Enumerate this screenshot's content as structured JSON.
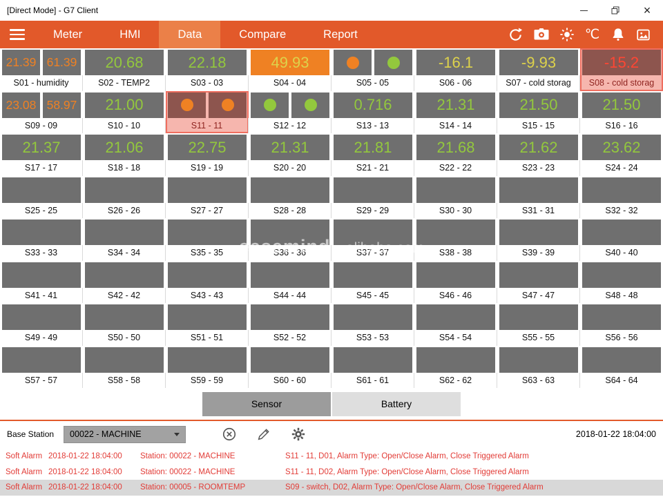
{
  "colors": {
    "accent": "#e2592a",
    "accent_active_tab": "#eb8048",
    "green": "#93c83d",
    "orange": "#ef8123",
    "yellow": "#ddd24b",
    "red": "#ff4633",
    "box_gray": "#6f6f6f",
    "alarm_highlight": "#f6b6ae",
    "alarm_text": "#e23b36"
  },
  "window": {
    "title": "[Direct Mode] - G7 Client"
  },
  "nav": {
    "tabs": [
      {
        "label": "Meter",
        "active": false
      },
      {
        "label": "HMI",
        "active": false
      },
      {
        "label": "Data",
        "active": true
      },
      {
        "label": "Compare",
        "active": false
      },
      {
        "label": "Report",
        "active": false
      }
    ],
    "temperature_unit": "℃"
  },
  "icons": {
    "menu": "hamburger-bars",
    "sync": "circular-arrow",
    "camera": "camera",
    "brightness": "sun",
    "alarm": "bell",
    "gallery": "picture-frame",
    "cancel": "circle-x",
    "edit": "pencil",
    "settings": "gear",
    "dropdown": "chevron-down"
  },
  "watermark": {
    "brand": "easemind",
    "site": "alibaba.com"
  },
  "sensors": [
    {
      "id": "S01",
      "label": "S01 - humidity",
      "type": "dual",
      "values": [
        "21.39",
        "61.39"
      ],
      "color": "orange"
    },
    {
      "id": "S02",
      "label": "S02 - TEMP2",
      "type": "value",
      "value": "20.68",
      "color": "green"
    },
    {
      "id": "S03",
      "label": "S03 - 03",
      "type": "value",
      "value": "22.18",
      "color": "green"
    },
    {
      "id": "S04",
      "label": "S04 - 04",
      "type": "value",
      "value": "49.93",
      "color": "yellow",
      "bg": "orange"
    },
    {
      "id": "S05",
      "label": "S05 - 05",
      "type": "circles",
      "circles": [
        "orange",
        "green"
      ]
    },
    {
      "id": "S06",
      "label": "S06 - 06",
      "type": "value",
      "value": "-16.1",
      "color": "yellow"
    },
    {
      "id": "S07",
      "label": "S07 - cold storag",
      "type": "value",
      "value": "-9.93",
      "color": "yellow"
    },
    {
      "id": "S08",
      "label": "S08 - cold storag",
      "type": "value",
      "value": "-15.2",
      "color": "red",
      "alarm": true
    },
    {
      "id": "S09",
      "label": "S09 - 09",
      "type": "dual",
      "values": [
        "23.08",
        "58.97"
      ],
      "color": "orange"
    },
    {
      "id": "S10",
      "label": "S10 - 10",
      "type": "value",
      "value": "21.00",
      "color": "green"
    },
    {
      "id": "S11",
      "label": "S11 - 11",
      "type": "circles",
      "circles": [
        "orange",
        "orange"
      ],
      "alarm": true
    },
    {
      "id": "S12",
      "label": "S12 - 12",
      "type": "circles",
      "circles": [
        "green",
        "green"
      ]
    },
    {
      "id": "S13",
      "label": "S13 - 13",
      "type": "value",
      "value": "0.716",
      "color": "green"
    },
    {
      "id": "S14",
      "label": "S14 - 14",
      "type": "value",
      "value": "21.31",
      "color": "green"
    },
    {
      "id": "S15",
      "label": "S15 - 15",
      "type": "value",
      "value": "21.50",
      "color": "green"
    },
    {
      "id": "S16",
      "label": "S16 - 16",
      "type": "value",
      "value": "21.50",
      "color": "green"
    },
    {
      "id": "S17",
      "label": "S17 - 17",
      "type": "value",
      "value": "21.37",
      "color": "green"
    },
    {
      "id": "S18",
      "label": "S18 - 18",
      "type": "value",
      "value": "21.06",
      "color": "green"
    },
    {
      "id": "S19",
      "label": "S19 - 19",
      "type": "value",
      "value": "22.75",
      "color": "green"
    },
    {
      "id": "S20",
      "label": "S20 - 20",
      "type": "value",
      "value": "21.31",
      "color": "green"
    },
    {
      "id": "S21",
      "label": "S21 - 21",
      "type": "value",
      "value": "21.81",
      "color": "green"
    },
    {
      "id": "S22",
      "label": "S22 - 22",
      "type": "value",
      "value": "21.68",
      "color": "green"
    },
    {
      "id": "S23",
      "label": "S23 - 23",
      "type": "value",
      "value": "21.62",
      "color": "green"
    },
    {
      "id": "S24",
      "label": "S24 - 24",
      "type": "value",
      "value": "23.62",
      "color": "green"
    },
    {
      "id": "S25",
      "label": "S25 - 25",
      "type": "empty"
    },
    {
      "id": "S26",
      "label": "S26 - 26",
      "type": "empty"
    },
    {
      "id": "S27",
      "label": "S27 - 27",
      "type": "empty"
    },
    {
      "id": "S28",
      "label": "S28 - 28",
      "type": "empty"
    },
    {
      "id": "S29",
      "label": "S29 - 29",
      "type": "empty"
    },
    {
      "id": "S30",
      "label": "S30 - 30",
      "type": "empty"
    },
    {
      "id": "S31",
      "label": "S31 - 31",
      "type": "empty"
    },
    {
      "id": "S32",
      "label": "S32 - 32",
      "type": "empty"
    },
    {
      "id": "S33",
      "label": "S33 - 33",
      "type": "empty"
    },
    {
      "id": "S34",
      "label": "S34 - 34",
      "type": "empty"
    },
    {
      "id": "S35",
      "label": "S35 - 35",
      "type": "empty"
    },
    {
      "id": "S36",
      "label": "S36 - 36",
      "type": "empty"
    },
    {
      "id": "S37",
      "label": "S37 - 37",
      "type": "empty"
    },
    {
      "id": "S38",
      "label": "S38 - 38",
      "type": "empty"
    },
    {
      "id": "S39",
      "label": "S39 - 39",
      "type": "empty"
    },
    {
      "id": "S40",
      "label": "S40 - 40",
      "type": "empty"
    },
    {
      "id": "S41",
      "label": "S41 - 41",
      "type": "empty"
    },
    {
      "id": "S42",
      "label": "S42 - 42",
      "type": "empty"
    },
    {
      "id": "S43",
      "label": "S43 - 43",
      "type": "empty"
    },
    {
      "id": "S44",
      "label": "S44 - 44",
      "type": "empty"
    },
    {
      "id": "S45",
      "label": "S45 - 45",
      "type": "empty"
    },
    {
      "id": "S46",
      "label": "S46 - 46",
      "type": "empty"
    },
    {
      "id": "S47",
      "label": "S47 - 47",
      "type": "empty"
    },
    {
      "id": "S48",
      "label": "S48 - 48",
      "type": "empty"
    },
    {
      "id": "S49",
      "label": "S49 - 49",
      "type": "empty"
    },
    {
      "id": "S50",
      "label": "S50 - 50",
      "type": "empty"
    },
    {
      "id": "S51",
      "label": "S51 - 51",
      "type": "empty"
    },
    {
      "id": "S52",
      "label": "S52 - 52",
      "type": "empty"
    },
    {
      "id": "S53",
      "label": "S53 - 53",
      "type": "empty"
    },
    {
      "id": "S54",
      "label": "S54 - 54",
      "type": "empty"
    },
    {
      "id": "S55",
      "label": "S55 - 55",
      "type": "empty"
    },
    {
      "id": "S56",
      "label": "S56 - 56",
      "type": "empty"
    },
    {
      "id": "S57",
      "label": "S57 - 57",
      "type": "empty"
    },
    {
      "id": "S58",
      "label": "S58 - 58",
      "type": "empty"
    },
    {
      "id": "S59",
      "label": "S59 - 59",
      "type": "empty"
    },
    {
      "id": "S60",
      "label": "S60 - 60",
      "type": "empty"
    },
    {
      "id": "S61",
      "label": "S61 - 61",
      "type": "empty"
    },
    {
      "id": "S62",
      "label": "S62 - 62",
      "type": "empty"
    },
    {
      "id": "S63",
      "label": "S63 - 63",
      "type": "empty"
    },
    {
      "id": "S64",
      "label": "S64 - 64",
      "type": "empty"
    }
  ],
  "footer_tabs": [
    {
      "label": "Sensor",
      "active": true
    },
    {
      "label": "Battery",
      "active": false
    }
  ],
  "base_station": {
    "label": "Base Station",
    "selected": "00022 - MACHINE",
    "timestamp": "2018-01-22 18:04:00"
  },
  "alarms": [
    {
      "type": "Soft Alarm",
      "time": "2018-01-22 18:04:00",
      "station": "Station: 00022 - MACHINE",
      "detail": "S11 - 11, D01, Alarm Type: Open/Close Alarm, Close Triggered Alarm"
    },
    {
      "type": "Soft Alarm",
      "time": "2018-01-22 18:04:00",
      "station": "Station: 00022 - MACHINE",
      "detail": "S11 - 11, D02, Alarm Type: Open/Close Alarm, Close Triggered Alarm"
    },
    {
      "type": "Soft Alarm",
      "time": "2018-01-22 18:04:00",
      "station": "Station: 00005 - ROOMTEMP",
      "detail": "S09 - switch, D02, Alarm Type: Open/Close Alarm, Close Triggered Alarm"
    }
  ]
}
